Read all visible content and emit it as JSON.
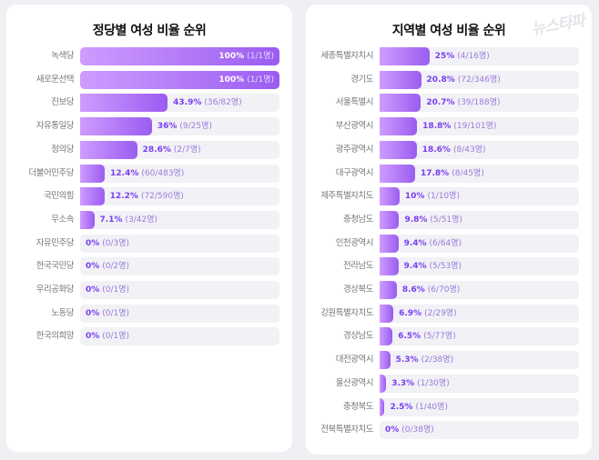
{
  "watermark": "뉴스타파",
  "colors": {
    "bar_start": "#cf9cff",
    "bar_end": "#9a5cf0",
    "value_text": "#7b3ff0",
    "track": "#f1f1f6"
  },
  "chart_data": [
    {
      "type": "bar",
      "orientation": "horizontal",
      "title": "정당별 여성 비율 순위",
      "xlim": [
        0,
        100
      ],
      "categories": [
        "녹색당",
        "새로운선택",
        "진보당",
        "자유통일당",
        "정의당",
        "더불어민주당",
        "국민의힘",
        "무소속",
        "자유민주당",
        "한국국민당",
        "우리공화당",
        "노동당",
        "한국의희망"
      ],
      "values": [
        100,
        100,
        43.9,
        36,
        28.6,
        12.4,
        12.2,
        7.1,
        0,
        0,
        0,
        0,
        0
      ],
      "value_labels": [
        "100%",
        "100%",
        "43.9%",
        "36%",
        "28.6%",
        "12.4%",
        "12.2%",
        "7.1%",
        "0%",
        "0%",
        "0%",
        "0%",
        "0%"
      ],
      "count_labels": [
        "(1/1명)",
        "(1/1명)",
        "(36/82명)",
        "(9/25명)",
        "(2/7명)",
        "(60/483명)",
        "(72/590명)",
        "(3/42명)",
        "(0/3명)",
        "(0/2명)",
        "(0/1명)",
        "(0/1명)",
        "(0/1명)"
      ]
    },
    {
      "type": "bar",
      "orientation": "horizontal",
      "title": "지역별 여성 비율 순위",
      "xlim": [
        0,
        100
      ],
      "categories": [
        "세종특별자치시",
        "경기도",
        "서울특별시",
        "부산광역시",
        "광주광역시",
        "대구광역시",
        "제주특별자치도",
        "충청남도",
        "인천광역시",
        "전라남도",
        "경상북도",
        "강원특별자치도",
        "경상남도",
        "대전광역시",
        "울산광역시",
        "충청북도",
        "전북특별자치도"
      ],
      "values": [
        25,
        20.8,
        20.7,
        18.8,
        18.6,
        17.8,
        10,
        9.8,
        9.4,
        9.4,
        8.6,
        6.9,
        6.5,
        5.3,
        3.3,
        2.5,
        0
      ],
      "value_labels": [
        "25%",
        "20.8%",
        "20.7%",
        "18.8%",
        "18.6%",
        "17.8%",
        "10%",
        "9.8%",
        "9.4%",
        "9.4%",
        "8.6%",
        "6.9%",
        "6.5%",
        "5.3%",
        "3.3%",
        "2.5%",
        "0%"
      ],
      "count_labels": [
        "(4/16명)",
        "(72/346명)",
        "(39/188명)",
        "(19/101명)",
        "(8/43명)",
        "(8/45명)",
        "(1/10명)",
        "(5/51명)",
        "(6/64명)",
        "(5/53명)",
        "(6/70명)",
        "(2/29명)",
        "(5/77명)",
        "(2/38명)",
        "(1/30명)",
        "(1/40명)",
        "(0/38명)"
      ]
    }
  ]
}
